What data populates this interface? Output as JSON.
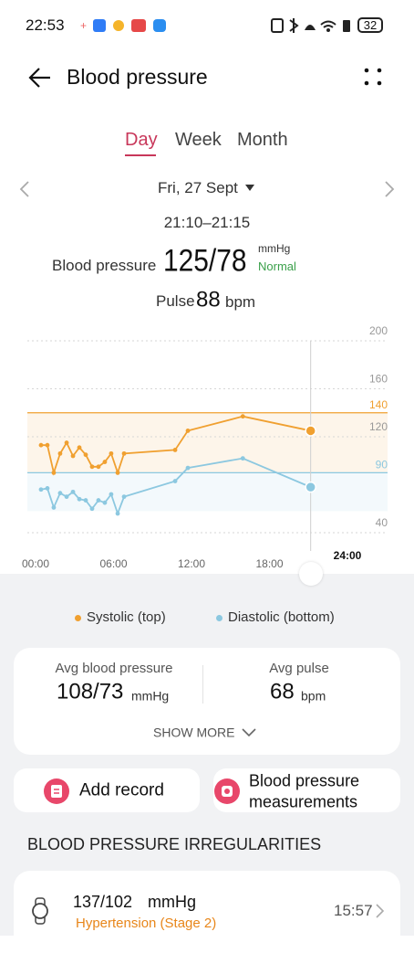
{
  "status_bar": {
    "time": "22:53",
    "battery": "32"
  },
  "header": {
    "title": "Blood pressure"
  },
  "tabs": [
    {
      "label": "Day",
      "active": true
    },
    {
      "label": "Week",
      "active": false
    },
    {
      "label": "Month",
      "active": false
    }
  ],
  "date": "Fri, 27 Sept",
  "reading": {
    "time_range": "21:10–21:15",
    "label": "Blood pressure",
    "value": "125/78",
    "unit": "mmHg",
    "status": "Normal",
    "pulse_label": "Pulse",
    "pulse": 88,
    "pulse_unit": "bpm"
  },
  "chart_data": {
    "type": "line",
    "x": [
      0.42,
      0.91,
      1.4,
      1.89,
      2.39,
      2.88,
      3.37,
      3.86,
      4.35,
      4.84,
      5.33,
      5.82,
      6.32,
      6.81,
      10.74,
      11.72,
      15.95,
      21.17
    ],
    "series": [
      {
        "name": "Systolic (top)",
        "color": "#f0a030",
        "values": [
          113,
          113,
          90,
          106,
          115,
          104,
          111,
          105,
          95,
          95,
          99,
          106,
          90,
          106,
          109,
          125,
          137,
          125
        ]
      },
      {
        "name": "Diastolic (bottom)",
        "color": "#8cc8e0",
        "values": [
          76,
          77,
          61,
          73,
          70,
          74,
          68,
          67,
          60,
          67,
          65,
          72,
          56,
          70,
          83,
          94,
          102,
          78
        ]
      }
    ],
    "xlim": [
      0,
      24
    ],
    "xticks": [
      {
        "value": 0,
        "label": "00:00"
      },
      {
        "value": 6,
        "label": "06:00"
      },
      {
        "value": 12,
        "label": "12:00"
      },
      {
        "value": 18,
        "label": "18:00"
      },
      {
        "value": 24,
        "label": "24:00"
      }
    ],
    "ylim": [
      40,
      200
    ],
    "yticks": [
      40,
      120,
      160,
      200
    ],
    "reference_lines": [
      {
        "value": 140,
        "color": "#f0a030"
      },
      {
        "value": 90,
        "color": "#8cc8e0"
      }
    ],
    "grid": true
  },
  "summary": {
    "avg_bp_label": "Avg blood pressure",
    "avg_bp": "108/73",
    "avg_bp_unit": "mmHg",
    "avg_pulse_label": "Avg pulse",
    "avg_pulse": 68,
    "avg_pulse_unit": "bpm",
    "show_more": "SHOW MORE"
  },
  "actions": [
    "Add record",
    "Blood pressure measurements"
  ],
  "irregularities": {
    "title": "BLOOD PRESSURE IRREGULARITIES",
    "items": [
      {
        "value": "137/102",
        "unit": "mmHg",
        "category": "Hypertension (Stage 2)",
        "time": "15:57"
      }
    ]
  }
}
